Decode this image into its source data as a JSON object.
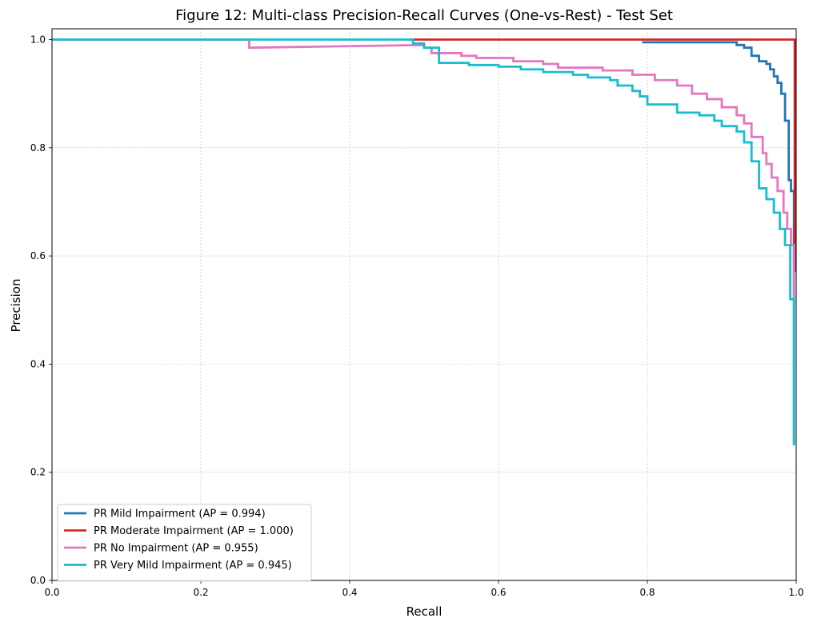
{
  "chart_data": {
    "type": "line",
    "title": "Figure 12: Multi-class Precision-Recall Curves (One-vs-Rest) - Test Set",
    "xlabel": "Recall",
    "ylabel": "Precision",
    "xlim": [
      0,
      1
    ],
    "ylim": [
      0,
      1.02
    ],
    "xticks": [
      0.0,
      0.2,
      0.4,
      0.6,
      0.8,
      1.0
    ],
    "yticks": [
      0.0,
      0.2,
      0.4,
      0.6,
      0.8,
      1.0
    ],
    "xtick_labels": [
      "0.0",
      "0.2",
      "0.4",
      "0.6",
      "0.8",
      "1.0"
    ],
    "ytick_labels": [
      "0.0",
      "0.2",
      "0.4",
      "0.6",
      "0.8",
      "1.0"
    ],
    "grid": true,
    "legend_position": "lower-left",
    "series": [
      {
        "name": "PR Mild Impairment (AP = 0.994)",
        "color": "#1f77b4",
        "x": [
          0.793,
          0.92,
          0.92,
          0.93,
          0.93,
          0.94,
          0.94,
          0.95,
          0.95,
          0.96,
          0.96,
          0.965,
          0.965,
          0.97,
          0.97,
          0.975,
          0.975,
          0.98,
          0.98,
          0.985,
          0.985,
          0.99,
          0.99,
          0.993,
          0.993,
          0.997,
          0.997
        ],
        "y": [
          0.995,
          0.995,
          0.99,
          0.99,
          0.985,
          0.985,
          0.97,
          0.97,
          0.96,
          0.96,
          0.955,
          0.955,
          0.945,
          0.945,
          0.932,
          0.932,
          0.92,
          0.92,
          0.9,
          0.9,
          0.85,
          0.85,
          0.74,
          0.74,
          0.72,
          0.72,
          0.25
        ]
      },
      {
        "name": "PR Moderate Impairment (AP = 1.000)",
        "color": "#d62728",
        "x": [
          0.48,
          0.998,
          0.998
        ],
        "y": [
          1.0,
          1.0,
          0.57
        ]
      },
      {
        "name": "PR No Impairment (AP = 0.955)",
        "color": "#e377c2",
        "x": [
          0.0,
          0.265,
          0.265,
          0.5,
          0.5,
          0.51,
          0.51,
          0.55,
          0.55,
          0.57,
          0.57,
          0.62,
          0.62,
          0.66,
          0.66,
          0.68,
          0.68,
          0.74,
          0.74,
          0.78,
          0.78,
          0.81,
          0.81,
          0.84,
          0.84,
          0.86,
          0.86,
          0.88,
          0.88,
          0.9,
          0.9,
          0.92,
          0.92,
          0.93,
          0.93,
          0.94,
          0.94,
          0.955,
          0.955,
          0.96,
          0.96,
          0.967,
          0.967,
          0.975,
          0.975,
          0.983,
          0.983,
          0.988,
          0.988,
          0.993,
          0.993,
          0.997,
          0.997
        ],
        "y": [
          1.0,
          1.0,
          0.985,
          0.99,
          0.985,
          0.985,
          0.975,
          0.975,
          0.97,
          0.97,
          0.966,
          0.966,
          0.96,
          0.96,
          0.955,
          0.955,
          0.948,
          0.948,
          0.943,
          0.943,
          0.935,
          0.935,
          0.925,
          0.925,
          0.915,
          0.915,
          0.9,
          0.9,
          0.89,
          0.89,
          0.875,
          0.875,
          0.86,
          0.86,
          0.845,
          0.845,
          0.82,
          0.82,
          0.79,
          0.79,
          0.77,
          0.77,
          0.745,
          0.745,
          0.72,
          0.72,
          0.68,
          0.68,
          0.65,
          0.65,
          0.62,
          0.62,
          0.52
        ]
      },
      {
        "name": "PR Very Mild Impairment (AP = 0.945)",
        "color": "#17becf",
        "x": [
          0.0,
          0.485,
          0.485,
          0.5,
          0.5,
          0.52,
          0.52,
          0.56,
          0.56,
          0.6,
          0.6,
          0.63,
          0.63,
          0.66,
          0.66,
          0.7,
          0.7,
          0.72,
          0.72,
          0.75,
          0.75,
          0.76,
          0.76,
          0.78,
          0.78,
          0.79,
          0.79,
          0.8,
          0.8,
          0.84,
          0.84,
          0.87,
          0.87,
          0.89,
          0.89,
          0.9,
          0.9,
          0.92,
          0.92,
          0.93,
          0.93,
          0.94,
          0.94,
          0.95,
          0.95,
          0.96,
          0.96,
          0.97,
          0.97,
          0.978,
          0.978,
          0.985,
          0.985,
          0.992,
          0.992,
          0.997,
          0.997
        ],
        "y": [
          1.0,
          1.0,
          0.993,
          0.993,
          0.985,
          0.985,
          0.957,
          0.957,
          0.953,
          0.953,
          0.95,
          0.95,
          0.945,
          0.945,
          0.94,
          0.94,
          0.935,
          0.935,
          0.93,
          0.93,
          0.925,
          0.925,
          0.915,
          0.915,
          0.905,
          0.905,
          0.895,
          0.895,
          0.88,
          0.88,
          0.865,
          0.865,
          0.86,
          0.86,
          0.85,
          0.85,
          0.84,
          0.84,
          0.83,
          0.83,
          0.81,
          0.81,
          0.775,
          0.775,
          0.725,
          0.725,
          0.705,
          0.705,
          0.68,
          0.68,
          0.65,
          0.65,
          0.62,
          0.62,
          0.52,
          0.52,
          0.25
        ]
      }
    ]
  }
}
